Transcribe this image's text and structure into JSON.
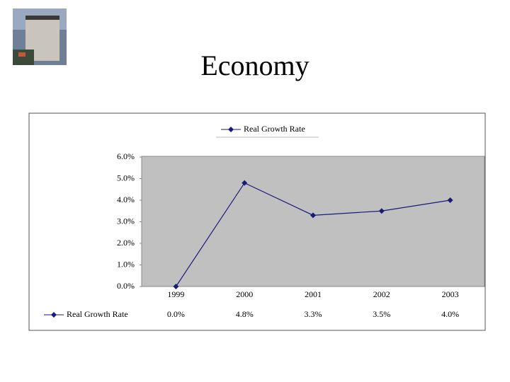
{
  "chart_data": {
    "type": "line",
    "title": "Economy",
    "categories": [
      "1999",
      "2000",
      "2001",
      "2002",
      "2003"
    ],
    "series": [
      {
        "name": "Real Growth Rate",
        "color": "#1a1a78",
        "values": [
          0,
          4.8,
          3.3,
          3.5,
          4.0
        ],
        "value_labels": [
          "0.0%",
          "4.8%",
          "3.3%",
          "3.5%",
          "4.0%"
        ]
      }
    ],
    "ylim": [
      0,
      6
    ],
    "yticks": [
      {
        "value": 0,
        "label": "0.0%"
      },
      {
        "value": 1,
        "label": "1.0%"
      },
      {
        "value": 2,
        "label": "2.0%"
      },
      {
        "value": 3,
        "label": "3.0%"
      },
      {
        "value": 4,
        "label": "4.0%"
      },
      {
        "value": 5,
        "label": "5.0%"
      },
      {
        "value": 6,
        "label": "6.0%"
      }
    ],
    "legend": "top",
    "plot_background": "#c0c0c0"
  }
}
